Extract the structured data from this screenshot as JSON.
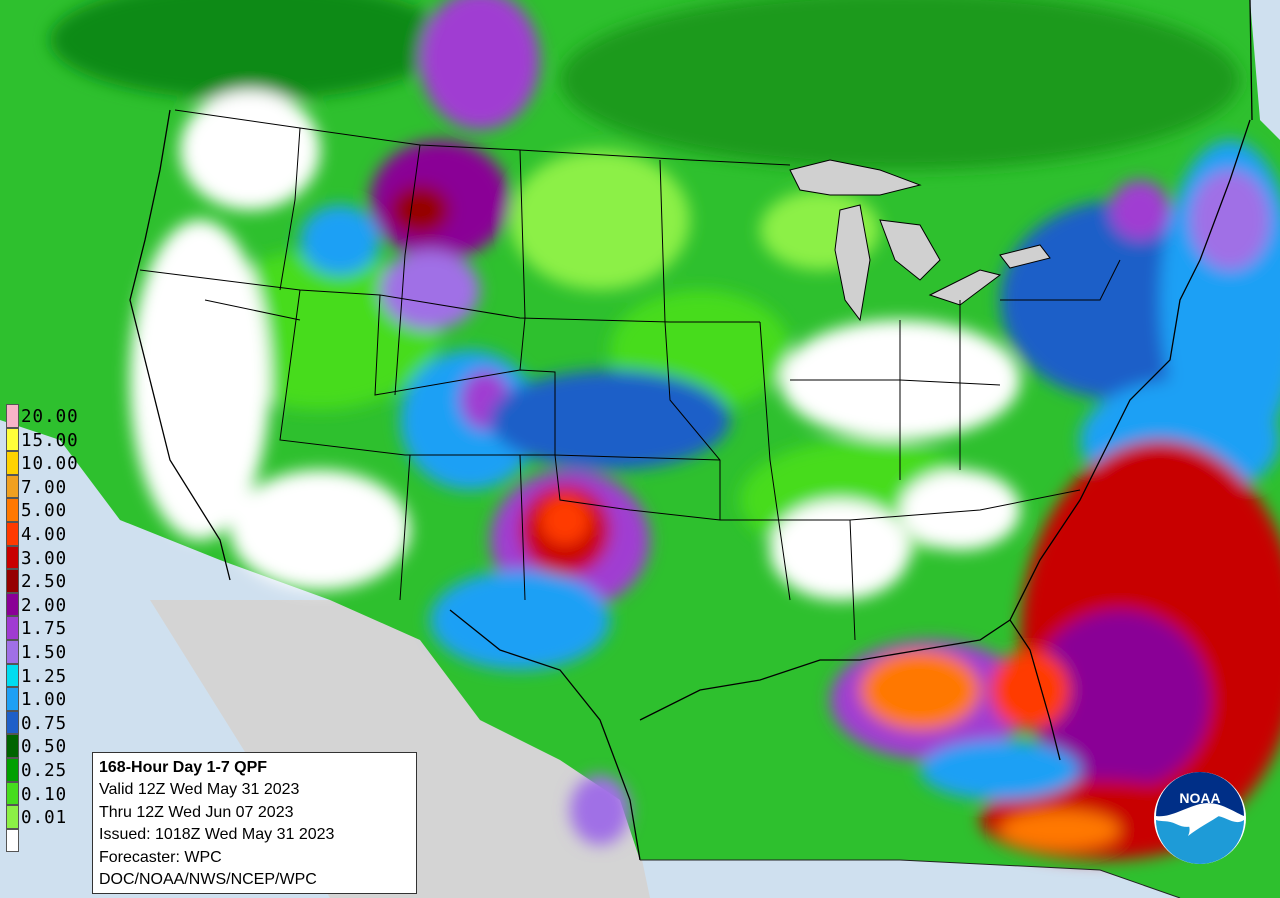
{
  "legend": {
    "levels": [
      {
        "label": "20.00",
        "color": "#f7b4c8"
      },
      {
        "label": "15.00",
        "color": "#ffff3a"
      },
      {
        "label": "10.00",
        "color": "#ffd200"
      },
      {
        "label": "7.00",
        "color": "#f0a020"
      },
      {
        "label": "5.00",
        "color": "#ff7800"
      },
      {
        "label": "4.00",
        "color": "#ff3a00"
      },
      {
        "label": "3.00",
        "color": "#c80000"
      },
      {
        "label": "2.50",
        "color": "#960000"
      },
      {
        "label": "2.00",
        "color": "#8a0096"
      },
      {
        "label": "1.75",
        "color": "#a03cd2"
      },
      {
        "label": "1.50",
        "color": "#a070e6"
      },
      {
        "label": "1.25",
        "color": "#00dcf0"
      },
      {
        "label": "1.00",
        "color": "#1ea0f5"
      },
      {
        "label": "0.75",
        "color": "#1f5fc8"
      },
      {
        "label": "0.50",
        "color": "#006400"
      },
      {
        "label": "0.25",
        "color": "#00a000"
      },
      {
        "label": "0.10",
        "color": "#46dc1e"
      },
      {
        "label": "0.01",
        "color": "#8cf046"
      },
      {
        "label": "",
        "color": "#ffffff"
      }
    ]
  },
  "info": {
    "title": "168-Hour Day 1-7 QPF",
    "valid": "Valid 12Z Wed May 31 2023",
    "thru": "Thru 12Z Wed Jun 07 2023",
    "issued": "Issued: 1018Z Wed May 31 2023",
    "forecaster": "Forecaster: WPC",
    "agency": "DOC/NOAA/NWS/NCEP/WPC"
  },
  "logo": {
    "text": "NOAA"
  },
  "colors": {
    "ocean": "#cfe0ef",
    "no_precip": "#ffffff",
    "land_outside": "#d4d4d4"
  }
}
